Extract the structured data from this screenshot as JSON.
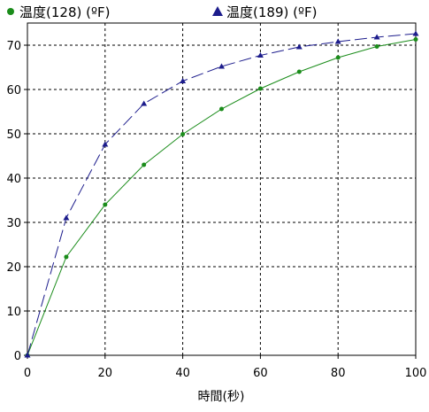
{
  "chart_data": {
    "type": "line",
    "xlabel": "時間(秒)",
    "ylabel": "",
    "xlim": [
      0,
      100
    ],
    "ylim": [
      0,
      75
    ],
    "xticks": [
      0,
      20,
      40,
      60,
      80,
      100
    ],
    "yticks": [
      0,
      10,
      20,
      30,
      40,
      50,
      60,
      70
    ],
    "grid": true,
    "legend_position": "top-left",
    "series": [
      {
        "name": "温度(128) (ºF)",
        "color": "#1a8c1a",
        "marker": "circle",
        "line_style": "solid",
        "x": [
          0,
          10,
          20,
          30,
          40,
          50,
          60,
          70,
          80,
          90,
          100
        ],
        "values": [
          0,
          22.2,
          34.0,
          43.0,
          49.9,
          55.6,
          60.2,
          64.0,
          67.2,
          69.7,
          71.3
        ]
      },
      {
        "name": "温度(189) (ºF)",
        "color": "#1c1c8c",
        "marker": "triangle",
        "line_style": "dashed",
        "x": [
          0,
          10,
          20,
          30,
          40,
          50,
          60,
          70,
          80,
          90,
          100
        ],
        "values": [
          0,
          31.0,
          47.6,
          56.8,
          61.9,
          65.2,
          67.7,
          69.6,
          70.8,
          71.8,
          72.6
        ]
      }
    ]
  }
}
